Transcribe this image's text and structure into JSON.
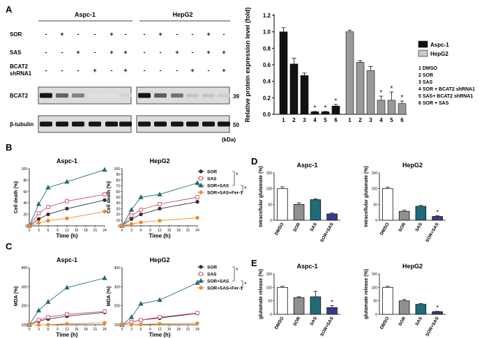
{
  "panels": {
    "A": {
      "letter": "A",
      "cell_lines": [
        "Aspc-1",
        "HepG2"
      ],
      "row_labels": [
        "SOR",
        "SAS",
        "BCAT2",
        "shRNA1"
      ],
      "treatment_signs": [
        [
          "-",
          "+",
          "-",
          "-",
          "+",
          "-"
        ],
        [
          "-",
          "-",
          "+",
          "-",
          "+",
          "+"
        ],
        [
          "-",
          "-",
          "-",
          "+",
          "-",
          "+"
        ]
      ],
      "blots": [
        {
          "name": "BCAT2",
          "mw": "39",
          "aspc_intensity": [
            1.0,
            0.6,
            0.46,
            0.03,
            0.03,
            0.1
          ],
          "hepg2_intensity": [
            1.0,
            0.63,
            0.53,
            0.17,
            0.17,
            0.13
          ]
        },
        {
          "name": "β-tubulin",
          "mw": "50",
          "aspc_intensity": [
            1,
            1,
            1,
            1,
            1,
            1
          ],
          "hepg2_intensity": [
            1,
            1,
            1,
            1,
            1,
            1
          ]
        }
      ],
      "kda_label": "(kDa)"
    },
    "B": {
      "letter": "B"
    },
    "C": {
      "letter": "C"
    },
    "D": {
      "letter": "D"
    },
    "E": {
      "letter": "E"
    }
  },
  "legend_A": {
    "series": [
      "Aspc-1",
      "HepG2"
    ],
    "items": [
      "1  DMSO",
      "2  SOR",
      "3  SAS",
      "4  SOR + BCAT2 shRNA1",
      "5  SAS+ BCAT2 shRNA1",
      "6  SOR + SAS"
    ]
  },
  "time_legend": [
    "SOR",
    "SAS",
    "SOR+SAS",
    "SOR+SAS+Fer-1"
  ],
  "sig_mark": "*",
  "chart_data": [
    {
      "id": "A-bar",
      "type": "bar",
      "ylabel": "Relative protein expression level (fold)",
      "ylim": [
        0,
        1.2
      ],
      "yticks": [
        0.0,
        0.2,
        0.4,
        0.6,
        0.8,
        1.0,
        1.2
      ],
      "categories": [
        "1",
        "2",
        "3",
        "4",
        "5",
        "6"
      ],
      "series": [
        {
          "name": "Aspc-1",
          "color": "#111111",
          "values": [
            1.0,
            0.61,
            0.47,
            0.03,
            0.03,
            0.1
          ],
          "errors": [
            0.05,
            0.07,
            0.03,
            0.005,
            0.005,
            0.02
          ],
          "sig": [
            false,
            false,
            false,
            true,
            true,
            true
          ]
        },
        {
          "name": "HepG2",
          "color": "#999999",
          "values": [
            1.0,
            0.63,
            0.53,
            0.17,
            0.17,
            0.13
          ],
          "errors": [
            0.02,
            0.02,
            0.05,
            0.05,
            0.1,
            0.03
          ],
          "sig": [
            false,
            false,
            false,
            true,
            true,
            true
          ]
        }
      ]
    },
    {
      "id": "B-aspc",
      "type": "line",
      "title": "Aspc-1",
      "xlabel": "Time (h)",
      "ylabel": "Cell death (%)",
      "x": [
        0,
        3,
        6,
        12,
        24
      ],
      "xticks": [
        0,
        3,
        6,
        9,
        12,
        15,
        18,
        21,
        24
      ],
      "ylim": [
        0,
        100
      ],
      "yticks": [
        0,
        20,
        40,
        60,
        80,
        100
      ],
      "series": [
        {
          "name": "SOR",
          "color": "#333333",
          "marker": "circle",
          "values": [
            0,
            12,
            20,
            30,
            45
          ]
        },
        {
          "name": "SAS",
          "color": "#d04a6a",
          "marker": "square",
          "values": [
            0,
            22,
            33,
            43,
            55
          ]
        },
        {
          "name": "SOR+SAS",
          "color": "#1f6b78",
          "marker": "triangle",
          "values": [
            0,
            38,
            67,
            77,
            98
          ]
        },
        {
          "name": "SOR+SAS+Fer-1",
          "color": "#f08a2a",
          "marker": "circle",
          "values": [
            0,
            5,
            9,
            13,
            25
          ]
        }
      ]
    },
    {
      "id": "B-hepg2",
      "type": "line",
      "title": "HepG2",
      "xlabel": "Time (h)",
      "ylabel": "Cell death (%)",
      "x": [
        0,
        3,
        6,
        12,
        24
      ],
      "xticks": [
        0,
        3,
        6,
        9,
        12,
        15,
        18,
        21,
        24
      ],
      "ylim": [
        0,
        100
      ],
      "yticks": [
        0,
        10,
        20,
        30,
        40,
        50,
        60,
        70,
        80,
        90,
        100
      ],
      "series": [
        {
          "name": "SOR",
          "color": "#333333",
          "marker": "circle",
          "values": [
            0,
            12,
            20,
            30,
            42
          ]
        },
        {
          "name": "SAS",
          "color": "#d04a6a",
          "marker": "square",
          "values": [
            0,
            18,
            28,
            38,
            50
          ]
        },
        {
          "name": "SOR+SAS",
          "color": "#1f6b78",
          "marker": "triangle",
          "values": [
            0,
            28,
            50,
            55,
            75
          ]
        },
        {
          "name": "SOR+SAS+Fer-1",
          "color": "#f08a2a",
          "marker": "circle",
          "values": [
            0,
            3,
            6,
            9,
            14
          ]
        }
      ]
    },
    {
      "id": "C-aspc",
      "type": "line",
      "title": "Aspc-1",
      "xlabel": "Time (h)",
      "ylabel": "MDA (%)",
      "x": [
        0,
        3,
        6,
        12,
        24
      ],
      "xticks": [
        0,
        3,
        6,
        9,
        12,
        15,
        18,
        21,
        24
      ],
      "ylim": [
        100,
        400
      ],
      "yticks": [
        100,
        200,
        300,
        400
      ],
      "series": [
        {
          "name": "SOR",
          "color": "#333333",
          "marker": "circle",
          "values": [
            100,
            120,
            130,
            145,
            165
          ]
        },
        {
          "name": "SAS",
          "color": "#d04a6a",
          "marker": "square",
          "values": [
            100,
            125,
            140,
            155,
            170
          ]
        },
        {
          "name": "SOR+SAS",
          "color": "#1f6b78",
          "marker": "triangle",
          "values": [
            100,
            175,
            220,
            295,
            345
          ]
        },
        {
          "name": "SOR+SAS+Fer-1",
          "color": "#f08a2a",
          "marker": "circle",
          "values": [
            100,
            100,
            100,
            105,
            110
          ]
        }
      ]
    },
    {
      "id": "C-hepg2",
      "type": "line",
      "title": "HepG2",
      "xlabel": "Time (h)",
      "ylabel": "MDA (%)",
      "x": [
        0,
        3,
        6,
        12,
        24
      ],
      "xticks": [
        0,
        3,
        6,
        9,
        12,
        15,
        18,
        21,
        24
      ],
      "ylim": [
        100,
        400
      ],
      "yticks": [
        100,
        200,
        300,
        400
      ],
      "series": [
        {
          "name": "SOR",
          "color": "#333333",
          "marker": "circle",
          "values": [
            100,
            115,
            125,
            135,
            160
          ]
        },
        {
          "name": "SAS",
          "color": "#d04a6a",
          "marker": "square",
          "values": [
            100,
            115,
            125,
            140,
            162
          ]
        },
        {
          "name": "SOR+SAS",
          "color": "#1f6b78",
          "marker": "triangle",
          "values": [
            100,
            140,
            210,
            230,
            320
          ]
        },
        {
          "name": "SOR+SAS+Fer-1",
          "color": "#f08a2a",
          "marker": "circle",
          "values": [
            100,
            100,
            102,
            105,
            108
          ]
        }
      ]
    },
    {
      "id": "D-aspc",
      "type": "bar",
      "title": "Aspc-1",
      "ylabel": "Intracellular glutamate (%)",
      "categories": [
        "DMSO",
        "SOR",
        "SAS",
        "SOR+SAS"
      ],
      "values": [
        100,
        50,
        65,
        20
      ],
      "errors": [
        6,
        5,
        3,
        3
      ],
      "colors": [
        "#ffffff",
        "#909090",
        "#1f6b78",
        "#3a3a8c"
      ],
      "sig": [
        false,
        false,
        false,
        false
      ],
      "ylim": [
        0,
        150
      ],
      "yticks": [
        0,
        50,
        100,
        150
      ]
    },
    {
      "id": "D-hepg2",
      "type": "bar",
      "title": "HepG2",
      "ylabel": "Intracellular glutamate (%)",
      "categories": [
        "DMSO",
        "SOR",
        "SAS",
        "SOR+SAS"
      ],
      "values": [
        100,
        28,
        44,
        12
      ],
      "errors": [
        5,
        4,
        3,
        2
      ],
      "colors": [
        "#ffffff",
        "#909090",
        "#1f6b78",
        "#3a3a8c"
      ],
      "sig": [
        false,
        false,
        false,
        true
      ],
      "ylim": [
        0,
        150
      ],
      "yticks": [
        0,
        50,
        100,
        150
      ]
    },
    {
      "id": "E-aspc",
      "type": "bar",
      "title": "Aspc-1",
      "ylabel": "glutamate release (%)",
      "categories": [
        "DMSO",
        "SOR",
        "SAS",
        "SOR+SAS"
      ],
      "values": [
        100,
        62,
        65,
        25
      ],
      "errors": [
        4,
        3,
        20,
        7
      ],
      "colors": [
        "#ffffff",
        "#909090",
        "#1f6b78",
        "#3a3a8c"
      ],
      "sig": [
        false,
        false,
        false,
        true
      ],
      "ylim": [
        0,
        150
      ],
      "yticks": [
        0,
        50,
        100,
        150
      ]
    },
    {
      "id": "E-hepg2",
      "type": "bar",
      "title": "HepG2",
      "ylabel": "glutamate release (%)",
      "categories": [
        "DMSO",
        "SOR",
        "SAS",
        "SOR+SAS"
      ],
      "values": [
        100,
        50,
        37,
        10
      ],
      "errors": [
        4,
        5,
        3,
        1
      ],
      "colors": [
        "#ffffff",
        "#909090",
        "#1f6b78",
        "#3a3a8c"
      ],
      "sig": [
        false,
        false,
        false,
        true
      ],
      "ylim": [
        0,
        150
      ],
      "yticks": [
        0,
        50,
        100,
        150
      ]
    }
  ]
}
